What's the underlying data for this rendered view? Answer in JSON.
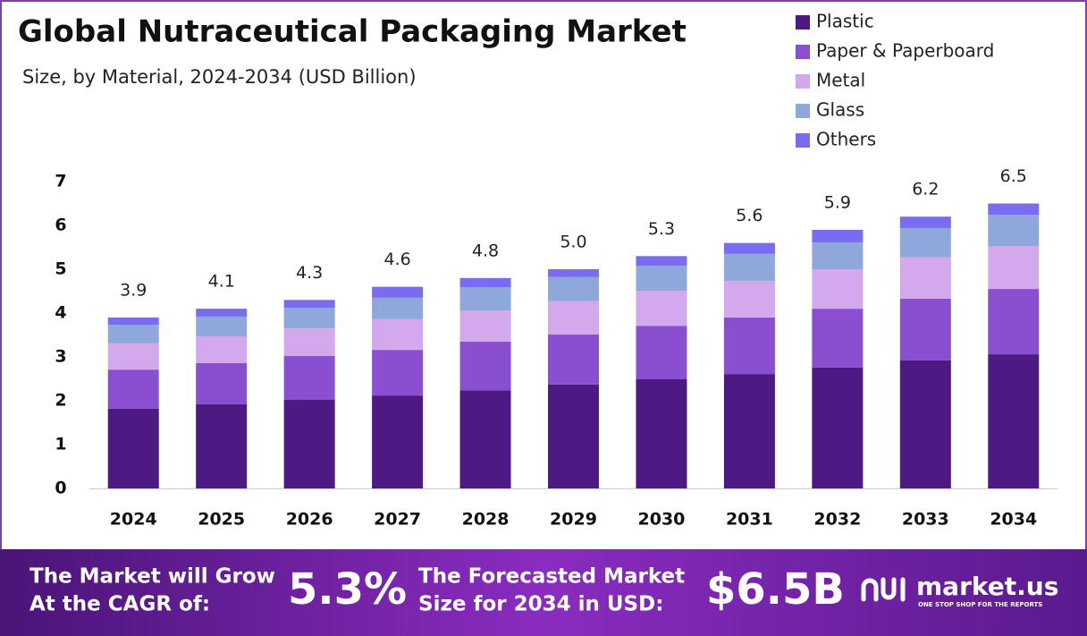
{
  "chart_data": {
    "type": "stacked-bar",
    "title": "Global Nutraceutical Packaging Market",
    "subtitle": "Size, by Material, 2024-2034 (USD Billion)",
    "categories": [
      "2024",
      "2025",
      "2026",
      "2027",
      "2028",
      "2029",
      "2030",
      "2031",
      "2032",
      "2033",
      "2034"
    ],
    "series": [
      {
        "name": "Plastic",
        "color": "#4c1a82",
        "values": [
          1.82,
          1.92,
          2.02,
          2.12,
          2.24,
          2.37,
          2.49,
          2.61,
          2.76,
          2.92,
          3.06
        ]
      },
      {
        "name": "Paper & Paperboard",
        "color": "#8a4fd0",
        "values": [
          0.89,
          0.94,
          1.0,
          1.04,
          1.11,
          1.14,
          1.22,
          1.29,
          1.34,
          1.41,
          1.49
        ]
      },
      {
        "name": "Metal",
        "color": "#d4a8ec",
        "values": [
          0.6,
          0.61,
          0.63,
          0.7,
          0.71,
          0.76,
          0.8,
          0.83,
          0.9,
          0.94,
          0.98
        ]
      },
      {
        "name": "Glass",
        "color": "#8fa8dc",
        "values": [
          0.42,
          0.45,
          0.47,
          0.49,
          0.53,
          0.55,
          0.57,
          0.62,
          0.61,
          0.67,
          0.71
        ]
      },
      {
        "name": "Others",
        "color": "#7a6cf0",
        "values": [
          0.17,
          0.18,
          0.18,
          0.25,
          0.21,
          0.18,
          0.22,
          0.25,
          0.29,
          0.26,
          0.26
        ]
      }
    ],
    "totals": {
      "values": [
        3.9,
        4.1,
        4.3,
        4.6,
        4.8,
        5.0,
        5.3,
        5.6,
        5.9,
        6.2,
        6.5
      ],
      "value_labels": [
        "3.9",
        "4.1",
        "4.3",
        "4.6",
        "4.8",
        "5.0",
        "5.3",
        "5.6",
        "5.9",
        "6.2",
        "6.5"
      ]
    },
    "ylim": [
      0,
      7
    ],
    "yticks": [
      0,
      1,
      2,
      3,
      4,
      5,
      6,
      7
    ],
    "grid": false,
    "legend": "top-right"
  },
  "footer": {
    "cagr_text": [
      "The Market will Grow",
      "At the CAGR of:"
    ],
    "cagr": "5.3%",
    "forecast_text": [
      "The Forecasted Market",
      "Size for 2034 in USD:"
    ],
    "forecast": "$6.5B",
    "brand": "market.us",
    "tagline": "ONE STOP SHOP FOR THE REPORTS"
  }
}
